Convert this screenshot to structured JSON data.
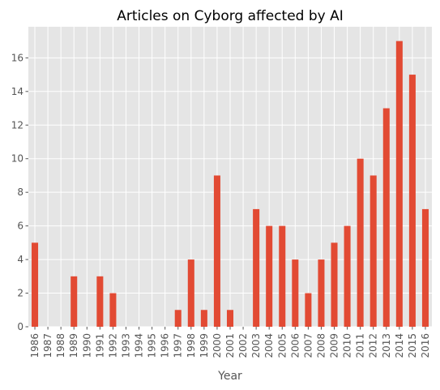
{
  "chart_data": {
    "type": "bar",
    "title": "Articles on Cyborg affected by AI",
    "xlabel": "Year",
    "ylabel": "",
    "categories": [
      "1986",
      "1987",
      "1988",
      "1989",
      "1990",
      "1991",
      "1992",
      "1993",
      "1994",
      "1995",
      "1996",
      "1997",
      "1998",
      "1999",
      "2000",
      "2001",
      "2002",
      "2003",
      "2004",
      "2005",
      "2006",
      "2007",
      "2008",
      "2009",
      "2010",
      "2011",
      "2012",
      "2013",
      "2014",
      "2015",
      "2016"
    ],
    "values": [
      5,
      0,
      0,
      3,
      0,
      3,
      2,
      0,
      0,
      0,
      0,
      1,
      4,
      1,
      9,
      1,
      0,
      7,
      6,
      6,
      4,
      2,
      4,
      5,
      6,
      10,
      9,
      13,
      17,
      15,
      7
    ],
    "ylim": [
      0,
      17.85
    ],
    "yticks": [
      "0",
      "2",
      "4",
      "6",
      "8",
      "10",
      "12",
      "14",
      "16"
    ],
    "grid": true,
    "bar_color": "#E24A33",
    "background_color": "#E5E5E5",
    "grid_color": "#FFFFFF"
  }
}
